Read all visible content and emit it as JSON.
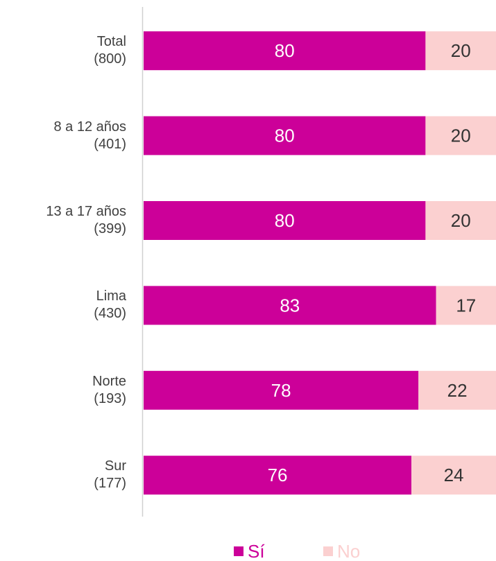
{
  "chart_data": {
    "type": "bar",
    "orientation": "horizontal",
    "stacked": true,
    "categories": [
      "Total\n(800)",
      "8 a 12 años\n(401)",
      "13 a 17 años\n(399)",
      "Lima\n(430)",
      "Norte\n(193)",
      "Sur\n(177)"
    ],
    "series": [
      {
        "name": "Sí",
        "color": "#cc0099",
        "label_color": "#ffffff",
        "values": [
          80,
          80,
          80,
          83,
          78,
          76
        ]
      },
      {
        "name": "No",
        "color": "#fbd0d0",
        "label_color": "#333333",
        "values": [
          20,
          20,
          20,
          17,
          22,
          24
        ]
      }
    ],
    "xlim": [
      0,
      100
    ],
    "legend": "bottom"
  }
}
